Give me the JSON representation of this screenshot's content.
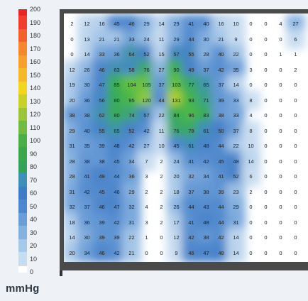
{
  "legend": {
    "unit": "mmHg",
    "ticks": [
      "200",
      "190",
      "180",
      "170",
      "160",
      "150",
      "140",
      "130",
      "120",
      "110",
      "100",
      "90",
      "80",
      "70",
      "60",
      "50",
      "40",
      "30",
      "20",
      "10",
      "0"
    ],
    "colors": [
      "#e6242a",
      "#ee3d2c",
      "#f2612b",
      "#f5872e",
      "#f6a12f",
      "#f4b92a",
      "#f0d523",
      "#c9cf2b",
      "#9ac43a",
      "#71ba43",
      "#4cae49",
      "#3da64d",
      "#34a25a",
      "#3f8fb8",
      "#3f7ec6",
      "#4d87cd",
      "#6a9ed8",
      "#86b2e0",
      "#a6c8e9",
      "#c6dcf1",
      "#ffffff"
    ]
  },
  "pressure_map": {
    "rows": [
      [
        2,
        12,
        16,
        45,
        46,
        29,
        14,
        29,
        41,
        40,
        16,
        10,
        0,
        0,
        4,
        27
      ],
      [
        0,
        13,
        21,
        21,
        33,
        24,
        11,
        29,
        44,
        30,
        21,
        9,
        0,
        0,
        0,
        6
      ],
      [
        0,
        14,
        33,
        36,
        64,
        52,
        15,
        57,
        55,
        28,
        40,
        22,
        0,
        0,
        1,
        1
      ],
      [
        12,
        26,
        46,
        63,
        58,
        76,
        27,
        90,
        49,
        37,
        42,
        35,
        3,
        0,
        0,
        2
      ],
      [
        19,
        30,
        47,
        85,
        104,
        105,
        37,
        103,
        77,
        65,
        37,
        14,
        0,
        0,
        0,
        0
      ],
      [
        20,
        36,
        56,
        80,
        95,
        120,
        44,
        131,
        93,
        71,
        39,
        33,
        8,
        0,
        0,
        0
      ],
      [
        38,
        38,
        62,
        80,
        74,
        57,
        22,
        84,
        96,
        83,
        38,
        33,
        4,
        0,
        0,
        0
      ],
      [
        29,
        40,
        55,
        65,
        52,
        42,
        11,
        76,
        78,
        61,
        50,
        37,
        8,
        0,
        0,
        0
      ],
      [
        31,
        35,
        39,
        48,
        42,
        27,
        10,
        45,
        61,
        48,
        44,
        22,
        10,
        0,
        0,
        0
      ],
      [
        28,
        38,
        38,
        45,
        34,
        7,
        2,
        24,
        41,
        42,
        45,
        48,
        14,
        0,
        0,
        0
      ],
      [
        28,
        41,
        49,
        44,
        36,
        3,
        2,
        20,
        32,
        34,
        41,
        52,
        6,
        0,
        0,
        0
      ],
      [
        31,
        42,
        45,
        46,
        29,
        2,
        2,
        18,
        37,
        38,
        39,
        23,
        2,
        0,
        0,
        0
      ],
      [
        32,
        37,
        46,
        47,
        32,
        4,
        2,
        26,
        44,
        43,
        44,
        29,
        0,
        0,
        0,
        0
      ],
      [
        18,
        36,
        39,
        42,
        31,
        3,
        2,
        17,
        41,
        48,
        44,
        31,
        0,
        0,
        0,
        0
      ],
      [
        14,
        30,
        39,
        39,
        22,
        1,
        0,
        12,
        42,
        38,
        42,
        14,
        0,
        0,
        0,
        0
      ],
      [
        20,
        34,
        46,
        42,
        21,
        0,
        0,
        9,
        46,
        47,
        48,
        14,
        0,
        0,
        0,
        0
      ]
    ]
  }
}
